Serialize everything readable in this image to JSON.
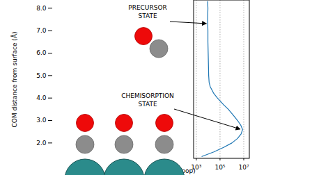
{
  "chart_data": {
    "type": "line",
    "x_label": "log(pop)",
    "y_label": "COM distance from surface (Å)",
    "log": "x",
    "grid": true,
    "color": "#1f77b4",
    "xlim": [
      631,
      31622777
    ],
    "xticks": [
      {
        "value": 1000,
        "label": "10³"
      },
      {
        "value": 100000,
        "label": "10⁵"
      },
      {
        "value": 10000000,
        "label": "10⁷"
      }
    ],
    "ylim": [
      1.3,
      8.35
    ],
    "yticks": [
      2,
      3,
      4,
      5,
      6,
      7,
      8
    ],
    "x": [
      9000,
      9500,
      9000,
      9500,
      9500,
      10000,
      10500,
      11000,
      12000,
      15000,
      30000,
      60000,
      200000,
      500000,
      1500000,
      3000000,
      5500000,
      8000000,
      6000000,
      3000000,
      1000000,
      200000,
      30000,
      3000
    ],
    "y": [
      8.3,
      8.0,
      7.5,
      7.0,
      6.5,
      6.0,
      5.5,
      5.0,
      4.7,
      4.5,
      4.2,
      4.0,
      3.7,
      3.5,
      3.2,
      3.0,
      2.8,
      2.6,
      2.4,
      2.2,
      2.0,
      1.8,
      1.6,
      1.4
    ],
    "annotations": [
      {
        "text": [
          "PRECURSOR",
          "STATE"
        ],
        "x": 10000,
        "y": 7.3
      },
      {
        "text": [
          "CHEMISORPTION",
          "STATE"
        ],
        "x": 7000000,
        "y": 2.6
      }
    ]
  }
}
